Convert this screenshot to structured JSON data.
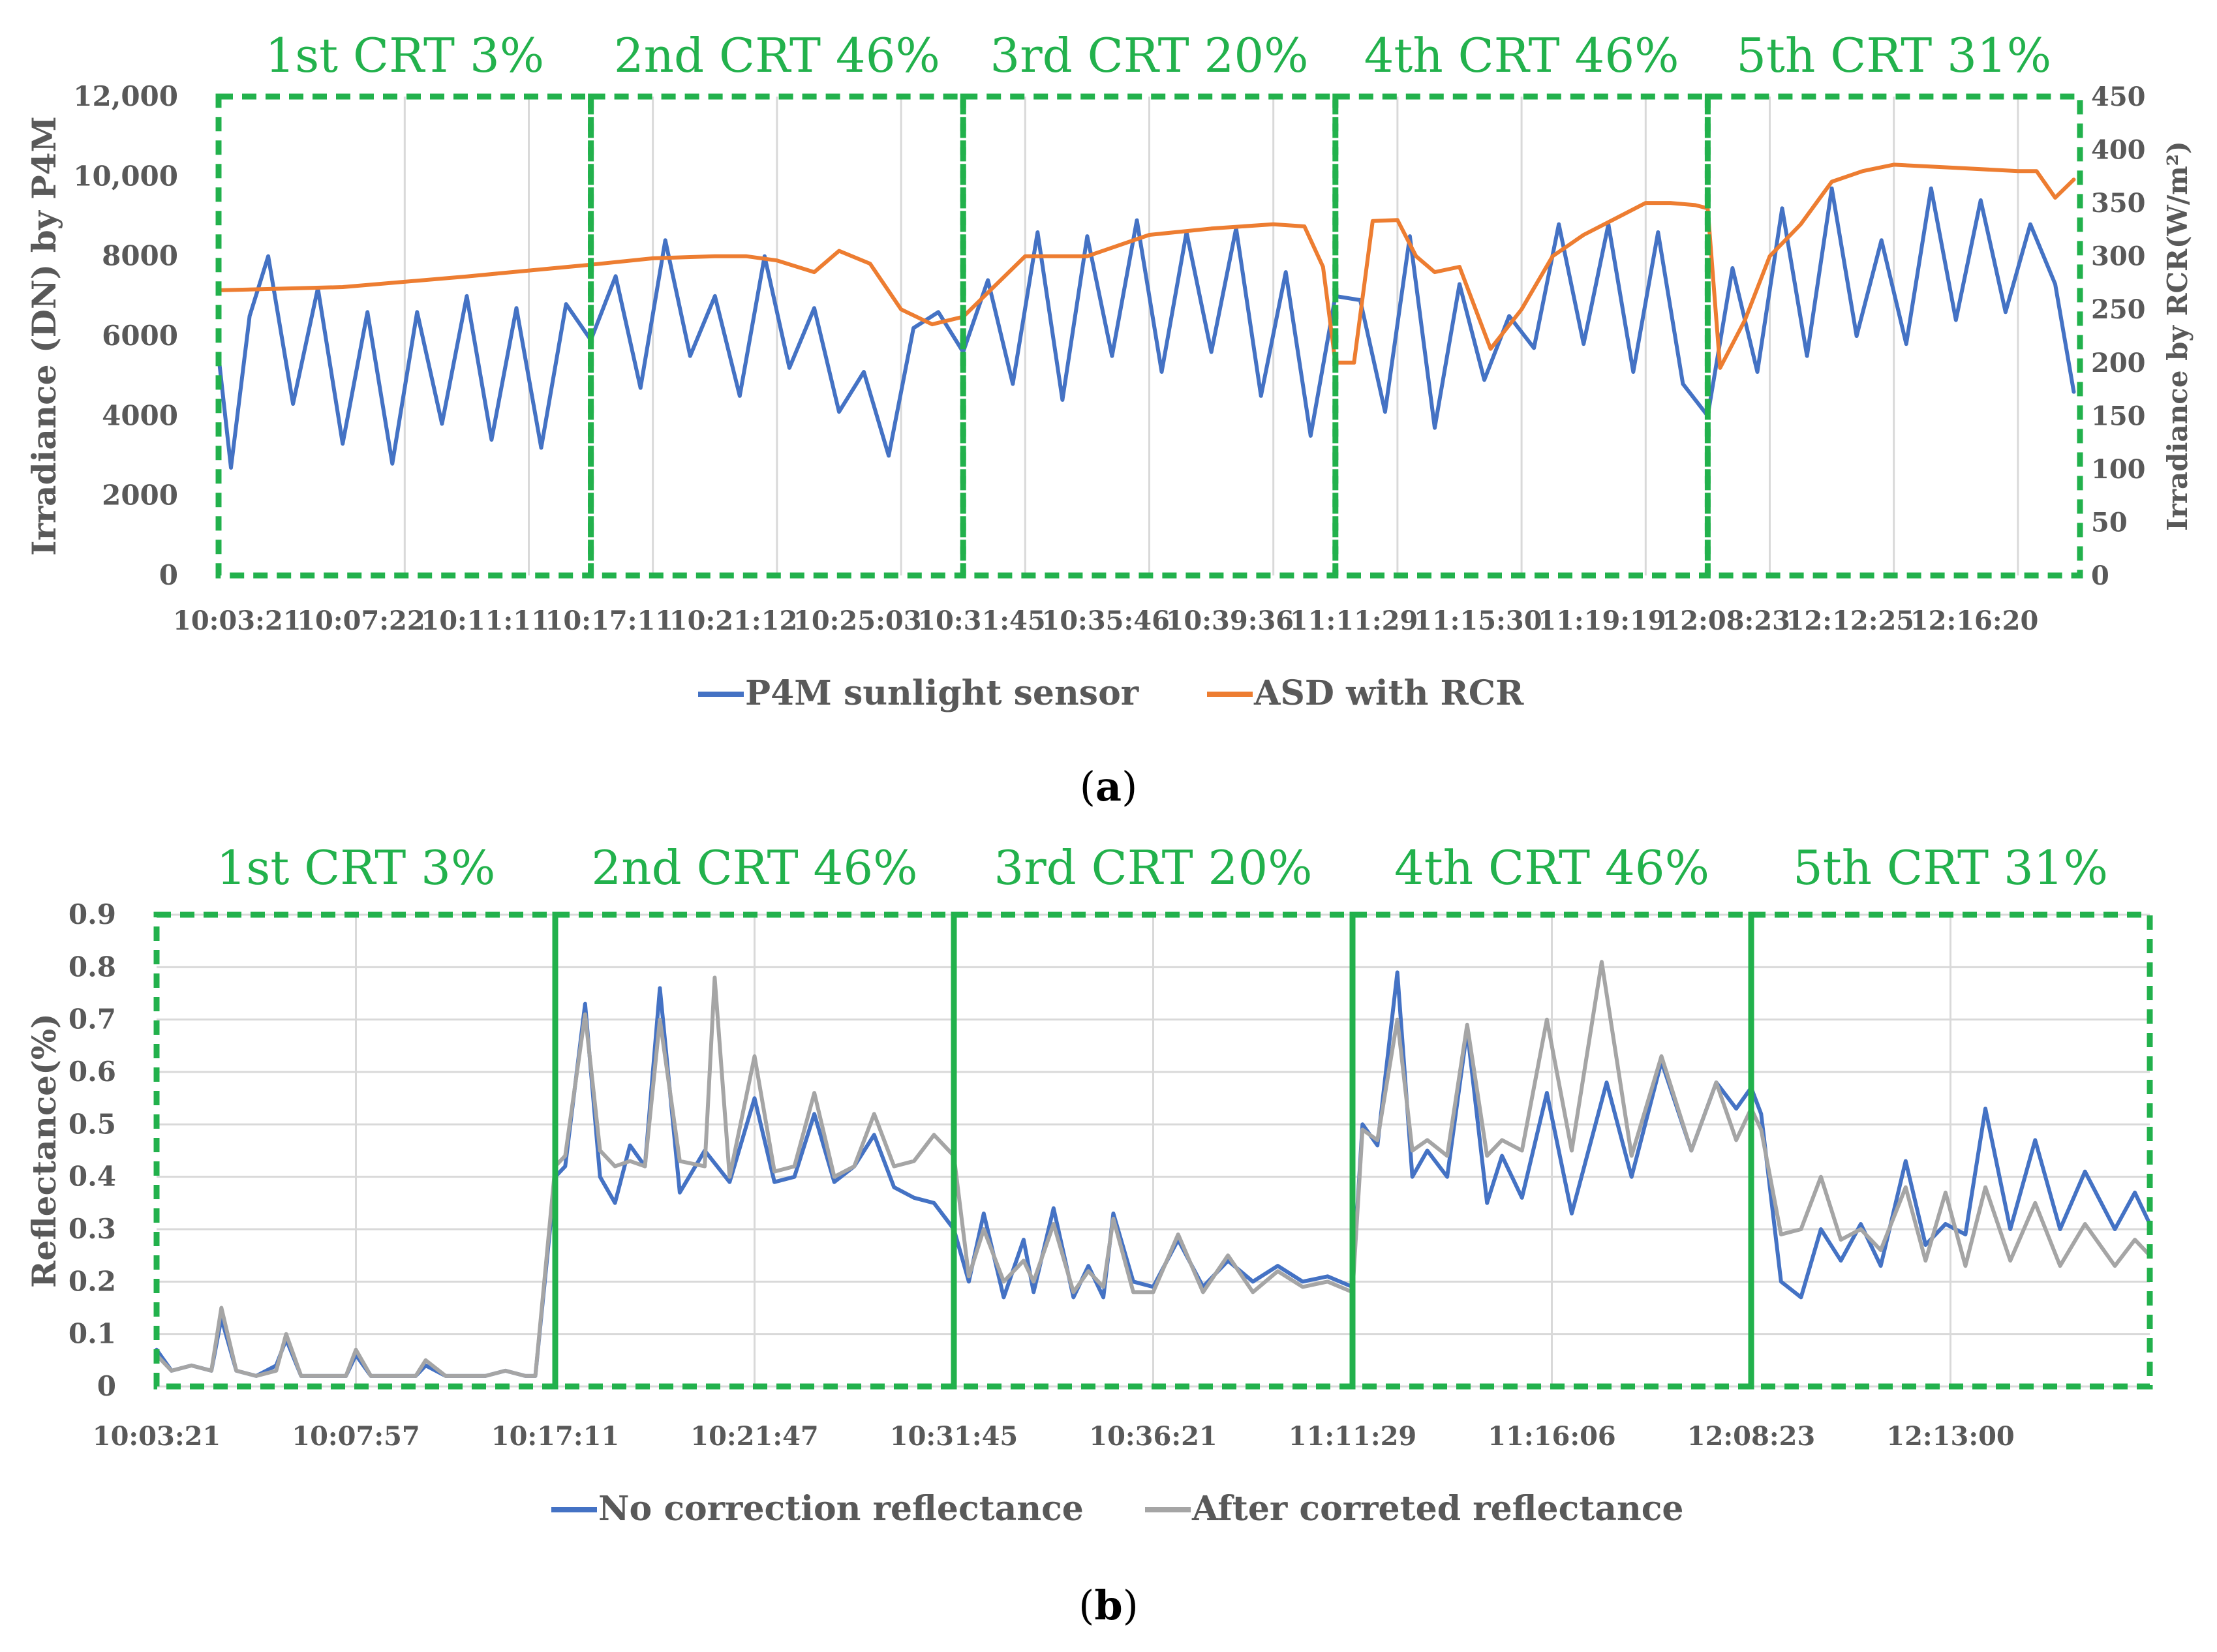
{
  "colors": {
    "blue": "#4472C4",
    "orange": "#ED7D31",
    "gray": "#A5A5A5",
    "green": "#22B14C",
    "grid": "#D9D9D9",
    "text": "#595959"
  },
  "panels": {
    "a": {
      "caption_open": "(",
      "caption_letter": "a",
      "caption_close": ")"
    },
    "b": {
      "caption_open": "(",
      "caption_letter": "b",
      "caption_close": ")"
    }
  },
  "chart_data": [
    {
      "id": "a",
      "type": "line",
      "title": "",
      "ylabel": "Irradiance (DN) by P4M",
      "y2label": "Irradiance by RCR(W/m²)",
      "ylim": [
        0,
        12000
      ],
      "yticks": [
        0,
        2000,
        4000,
        6000,
        8000,
        10000,
        12000
      ],
      "ytick_labels": [
        "0",
        "2000",
        "4000",
        "6000",
        "8000",
        "10,000",
        "12,000"
      ],
      "y2lim": [
        0,
        450
      ],
      "y2ticks": [
        0,
        50,
        100,
        150,
        200,
        250,
        300,
        350,
        400,
        450
      ],
      "y2tick_labels": [
        "0",
        "50",
        "100",
        "150",
        "200",
        "250",
        "300",
        "350",
        "400",
        "450"
      ],
      "x_range": [
        0,
        30
      ],
      "xtick_positions": [
        0,
        2,
        4,
        6,
        8,
        10,
        12,
        14,
        16,
        18,
        20,
        22,
        24,
        26,
        28
      ],
      "xtick_labels": [
        "10:03:21",
        "10:07:22",
        "10:11:11",
        "10:17:11",
        "10:21:12",
        "10:25:03",
        "10:31:45",
        "10:35:46",
        "10:39:36",
        "11:11:29",
        "11:15:30",
        "11:19:19",
        "12:08:23",
        "12:12:25",
        "12:16:20"
      ],
      "legend": [
        "P4M sunlight sensor",
        "ASD with RCR"
      ],
      "legend_position": "bottom",
      "grid": true,
      "sections": [
        {
          "label": "1st CRT 3%",
          "start": 0,
          "end": 6
        },
        {
          "label": "2nd CRT 46%",
          "start": 6,
          "end": 12
        },
        {
          "label": "3rd CRT 20%",
          "start": 12,
          "end": 18
        },
        {
          "label": "4th CRT 46%",
          "start": 18,
          "end": 24
        },
        {
          "label": "5th CRT 31%",
          "start": 24,
          "end": 30
        }
      ],
      "series": [
        {
          "name": "P4M sunlight sensor",
          "axis": "left",
          "x": [
            0,
            0.2,
            0.5,
            0.8,
            1.2,
            1.6,
            2.0,
            2.4,
            2.8,
            3.2,
            3.6,
            4.0,
            4.4,
            4.8,
            5.2,
            5.6,
            6.0,
            6.4,
            6.8,
            7.2,
            7.6,
            8.0,
            8.4,
            8.8,
            9.2,
            9.6,
            10.0,
            10.4,
            10.8,
            11.2,
            11.6,
            12.0,
            12.4,
            12.8,
            13.2,
            13.6,
            14.0,
            14.4,
            14.8,
            15.2,
            15.6,
            16.0,
            16.4,
            16.8,
            17.2,
            17.6,
            18.0,
            18.4,
            18.8,
            19.2,
            19.6,
            20.0,
            20.4,
            20.8,
            21.2,
            21.6,
            22.0,
            22.4,
            22.8,
            23.2,
            23.6,
            24.0,
            24.4,
            24.8,
            25.2,
            25.6,
            26.0,
            26.4,
            26.8,
            27.2,
            27.6,
            28.0,
            28.4,
            28.8,
            29.2,
            29.6,
            29.9
          ],
          "values": [
            5500,
            2700,
            6500,
            8000,
            4300,
            7200,
            3300,
            6600,
            2800,
            6600,
            3800,
            7000,
            3400,
            6700,
            3200,
            6800,
            5900,
            7500,
            4700,
            8400,
            5500,
            7000,
            4500,
            8000,
            5200,
            6700,
            4100,
            5100,
            3000,
            6200,
            6600,
            5600,
            7400,
            4800,
            8600,
            4400,
            8500,
            5500,
            8900,
            5100,
            8600,
            5600,
            8700,
            4500,
            7600,
            3500,
            7000,
            6900,
            4100,
            8500,
            3700,
            7300,
            4900,
            6500,
            5700,
            8800,
            5800,
            8800,
            5100,
            8600,
            4800,
            4000,
            7700,
            5100,
            9200,
            5500,
            9700,
            6000,
            8400,
            5800,
            9700,
            6400,
            9400,
            6600,
            8800,
            7300,
            4600
          ]
        },
        {
          "name": "ASD with RCR",
          "axis": "right",
          "x": [
            0,
            2,
            4,
            6,
            7,
            8,
            8.5,
            9,
            9.6,
            10,
            10.5,
            11,
            11.5,
            12,
            13,
            14,
            15,
            16,
            17,
            17.5,
            17.8,
            18,
            18.3,
            18.6,
            19,
            19.3,
            19.6,
            20,
            20.5,
            21,
            21.5,
            22,
            22.5,
            23,
            23.4,
            23.8,
            24,
            24.2,
            24.6,
            25,
            25.5,
            26,
            26.5,
            27,
            28,
            29,
            29.3,
            29.6,
            29.9
          ],
          "values": [
            268,
            271,
            281,
            292,
            298,
            300,
            300,
            296,
            285,
            305,
            293,
            250,
            236,
            243,
            300,
            300,
            320,
            326,
            330,
            328,
            290,
            200,
            200,
            333,
            334,
            300,
            285,
            290,
            213,
            250,
            300,
            320,
            335,
            350,
            350,
            348,
            345,
            195,
            240,
            300,
            330,
            370,
            380,
            386,
            383,
            380,
            380,
            355,
            372
          ]
        }
      ]
    },
    {
      "id": "b",
      "type": "line",
      "title": "",
      "ylabel": "Reflectance(%)",
      "ylim": [
        0,
        0.9
      ],
      "yticks": [
        0,
        0.1,
        0.2,
        0.3,
        0.4,
        0.5,
        0.6,
        0.7,
        0.8,
        0.9
      ],
      "ytick_labels": [
        "0",
        "0.1",
        "0.2",
        "0.3",
        "0.4",
        "0.5",
        "0.6",
        "0.7",
        "0.8",
        "0.9"
      ],
      "x_range": [
        0,
        20
      ],
      "xtick_positions": [
        0,
        2,
        4,
        6,
        8,
        10,
        12,
        14,
        16,
        18
      ],
      "xtick_labels": [
        "10:03:21",
        "10:07:57",
        "10:17:11",
        "10:21:47",
        "10:31:45",
        "10:36:21",
        "11:11:29",
        "11:16:06",
        "12:08:23",
        "12:13:00"
      ],
      "legend": [
        "No correction reflectance",
        "After correted reflectance"
      ],
      "legend_position": "bottom",
      "grid": true,
      "sections": [
        {
          "label": "1st CRT 3%",
          "start": 0,
          "end": 4
        },
        {
          "label": "2nd CRT 46%",
          "start": 4,
          "end": 8
        },
        {
          "label": "3rd CRT 20%",
          "start": 8,
          "end": 12
        },
        {
          "label": "4th CRT 46%",
          "start": 12,
          "end": 16
        },
        {
          "label": "5th CRT 31%",
          "start": 16,
          "end": 20
        }
      ],
      "series": [
        {
          "name": "No correction reflectance",
          "x": [
            0,
            0.15,
            0.35,
            0.55,
            0.65,
            0.8,
            1.0,
            1.2,
            1.3,
            1.45,
            1.7,
            1.9,
            2.0,
            2.15,
            2.4,
            2.6,
            2.7,
            2.9,
            3.2,
            3.3,
            3.5,
            3.7,
            3.8,
            4.0,
            4.1,
            4.3,
            4.45,
            4.6,
            4.75,
            4.9,
            5.05,
            5.25,
            5.5,
            5.75,
            6.0,
            6.2,
            6.4,
            6.6,
            6.8,
            7.0,
            7.2,
            7.4,
            7.6,
            7.8,
            8.0,
            8.15,
            8.3,
            8.5,
            8.7,
            8.8,
            9.0,
            9.2,
            9.35,
            9.5,
            9.6,
            9.8,
            10.0,
            10.25,
            10.5,
            10.75,
            11.0,
            11.25,
            11.5,
            11.75,
            12.0,
            12.1,
            12.25,
            12.45,
            12.6,
            12.75,
            12.95,
            13.15,
            13.35,
            13.5,
            13.7,
            13.95,
            14.2,
            14.55,
            14.8,
            15.1,
            15.4,
            15.65,
            15.85,
            16.0,
            16.1,
            16.3,
            16.5,
            16.7,
            16.9,
            17.1,
            17.3,
            17.55,
            17.75,
            17.95,
            18.15,
            18.35,
            18.6,
            18.85,
            19.1,
            19.35,
            19.65,
            19.85,
            20.0
          ],
          "values": [
            0.07,
            0.03,
            0.04,
            0.03,
            0.13,
            0.03,
            0.02,
            0.04,
            0.09,
            0.02,
            0.02,
            0.02,
            0.06,
            0.02,
            0.02,
            0.02,
            0.04,
            0.02,
            0.02,
            0.02,
            0.03,
            0.02,
            0.02,
            0.4,
            0.42,
            0.73,
            0.4,
            0.35,
            0.46,
            0.42,
            0.76,
            0.37,
            0.45,
            0.39,
            0.55,
            0.39,
            0.4,
            0.52,
            0.39,
            0.42,
            0.48,
            0.38,
            0.36,
            0.35,
            0.3,
            0.2,
            0.33,
            0.17,
            0.28,
            0.18,
            0.34,
            0.17,
            0.23,
            0.17,
            0.33,
            0.2,
            0.19,
            0.28,
            0.19,
            0.24,
            0.2,
            0.23,
            0.2,
            0.21,
            0.19,
            0.5,
            0.46,
            0.79,
            0.4,
            0.45,
            0.4,
            0.68,
            0.35,
            0.44,
            0.36,
            0.56,
            0.33,
            0.58,
            0.4,
            0.62,
            0.45,
            0.58,
            0.53,
            0.57,
            0.52,
            0.2,
            0.17,
            0.3,
            0.24,
            0.31,
            0.23,
            0.43,
            0.27,
            0.31,
            0.29,
            0.53,
            0.3,
            0.47,
            0.3,
            0.41,
            0.3,
            0.37,
            0.31
          ]
        },
        {
          "name": "After correted reflectance",
          "x": [
            0,
            0.15,
            0.35,
            0.55,
            0.65,
            0.8,
            1.0,
            1.2,
            1.3,
            1.45,
            1.7,
            1.9,
            2.0,
            2.15,
            2.4,
            2.6,
            2.7,
            2.9,
            3.2,
            3.3,
            3.5,
            3.7,
            3.8,
            4.0,
            4.1,
            4.3,
            4.45,
            4.6,
            4.75,
            4.9,
            5.05,
            5.25,
            5.5,
            5.6,
            5.75,
            6.0,
            6.2,
            6.4,
            6.6,
            6.8,
            7.0,
            7.2,
            7.4,
            7.6,
            7.8,
            8.0,
            8.15,
            8.3,
            8.5,
            8.7,
            8.8,
            9.0,
            9.2,
            9.35,
            9.5,
            9.6,
            9.8,
            10.0,
            10.25,
            10.5,
            10.75,
            11.0,
            11.25,
            11.5,
            11.75,
            12.0,
            12.1,
            12.25,
            12.45,
            12.6,
            12.75,
            12.95,
            13.15,
            13.35,
            13.5,
            13.7,
            13.95,
            14.2,
            14.5,
            14.8,
            15.1,
            15.4,
            15.65,
            15.85,
            16.0,
            16.1,
            16.3,
            16.5,
            16.7,
            16.9,
            17.1,
            17.3,
            17.55,
            17.75,
            17.95,
            18.15,
            18.35,
            18.6,
            18.85,
            19.1,
            19.35,
            19.65,
            19.85,
            20.0
          ],
          "values": [
            0.06,
            0.03,
            0.04,
            0.03,
            0.15,
            0.03,
            0.02,
            0.03,
            0.1,
            0.02,
            0.02,
            0.02,
            0.07,
            0.02,
            0.02,
            0.02,
            0.05,
            0.02,
            0.02,
            0.02,
            0.03,
            0.02,
            0.02,
            0.42,
            0.44,
            0.71,
            0.45,
            0.42,
            0.43,
            0.42,
            0.7,
            0.43,
            0.42,
            0.78,
            0.4,
            0.63,
            0.41,
            0.42,
            0.56,
            0.4,
            0.42,
            0.52,
            0.42,
            0.43,
            0.48,
            0.44,
            0.21,
            0.3,
            0.2,
            0.24,
            0.2,
            0.31,
            0.18,
            0.22,
            0.19,
            0.32,
            0.18,
            0.18,
            0.29,
            0.18,
            0.25,
            0.18,
            0.22,
            0.19,
            0.2,
            0.18,
            0.49,
            0.47,
            0.7,
            0.45,
            0.47,
            0.44,
            0.69,
            0.44,
            0.47,
            0.45,
            0.7,
            0.45,
            0.81,
            0.44,
            0.63,
            0.45,
            0.58,
            0.47,
            0.53,
            0.49,
            0.29,
            0.3,
            0.4,
            0.28,
            0.3,
            0.26,
            0.38,
            0.24,
            0.37,
            0.23,
            0.38,
            0.24,
            0.35,
            0.23,
            0.31,
            0.23,
            0.28,
            0.25
          ]
        }
      ]
    }
  ]
}
